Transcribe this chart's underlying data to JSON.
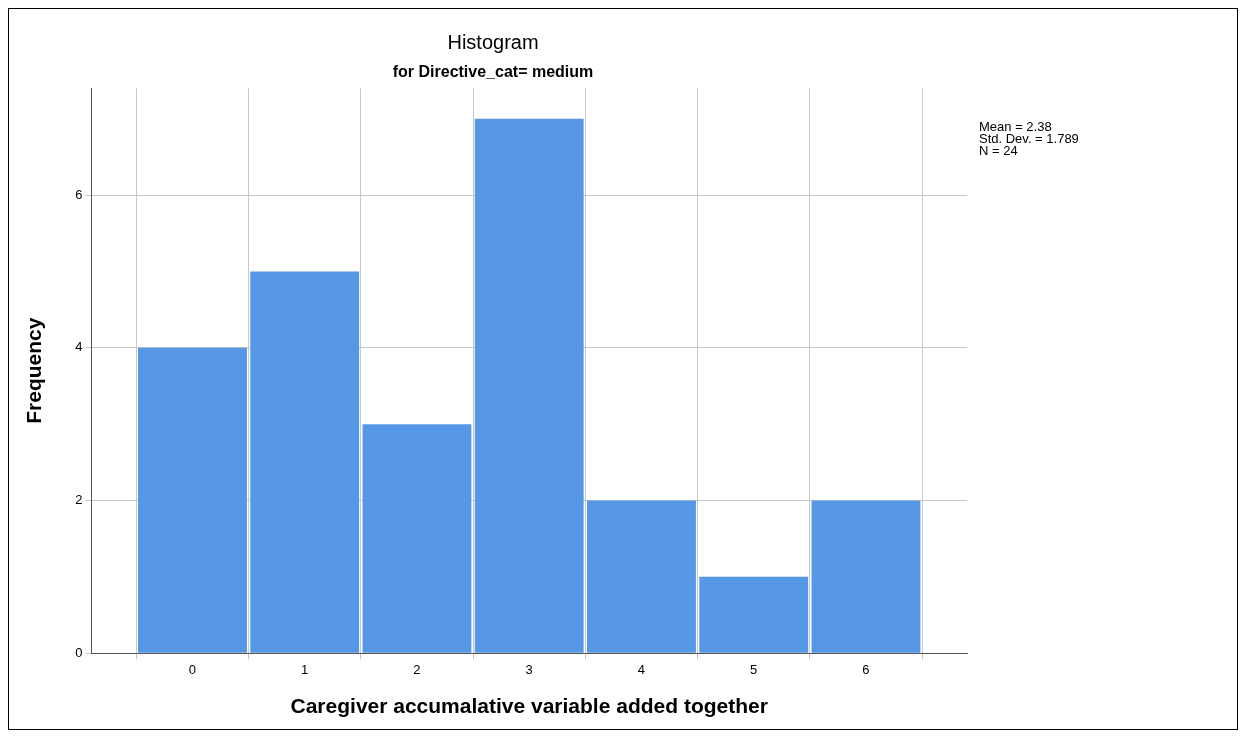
{
  "chart_data": {
    "type": "histogram",
    "title": "Histogram",
    "subtitle": "for Directive_cat= medium",
    "xlabel": "Caregiver accumalative variable added together",
    "ylabel": "Frequency",
    "bins": [
      -0.5,
      0.5,
      1.5,
      2.5,
      3.5,
      4.5,
      5.5,
      6.5
    ],
    "values": [
      4,
      5,
      3,
      7,
      2,
      1,
      2
    ],
    "color": "#5698e6",
    "xlim": [
      -0.9,
      6.9
    ],
    "xticks": [
      0,
      1,
      2,
      3,
      4,
      5,
      6
    ],
    "ylim": [
      0,
      7.4
    ],
    "yticks": [
      0,
      2,
      4,
      6
    ],
    "grid": true,
    "annotations": [
      "Mean = 2.38",
      "Std. Dev. = 1.789",
      "N = 24"
    ]
  }
}
